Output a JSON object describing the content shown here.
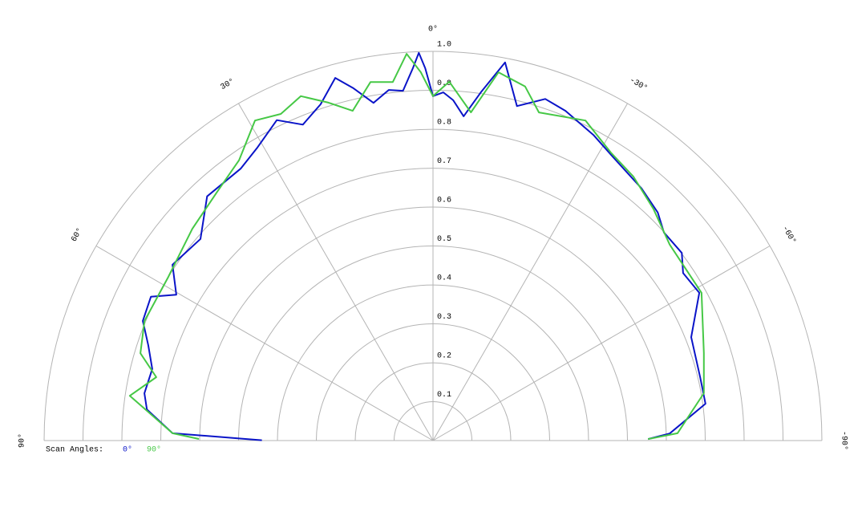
{
  "chart_data": {
    "type": "polar",
    "legend_title": "Scan Angles:",
    "rlim": [
      0,
      1
    ],
    "rticks": [
      0.1,
      0.2,
      0.3,
      0.4,
      0.5,
      0.6,
      0.7,
      0.8,
      0.9,
      {
        "value": 1,
        "label": "1.0"
      }
    ],
    "thetalim": [
      90,
      -90
    ],
    "thetaticks": [
      {
        "value": 90,
        "label": "90°"
      },
      {
        "value": 60,
        "label": "60°"
      },
      {
        "value": 30,
        "label": "30°"
      },
      {
        "value": 0,
        "label": "0°"
      },
      {
        "value": -30,
        "label": "-30°"
      },
      {
        "value": -60,
        "label": "-60°"
      },
      {
        "value": -90,
        "label": "-90°"
      }
    ],
    "grid": true,
    "series": [
      {
        "name": "0°",
        "color": "#0a14c8",
        "theta": [
          89.9,
          88.4,
          83.8,
          80.7,
          75.7,
          71.5,
          67.6,
          63.0,
          60.4,
          56.0,
          49.1,
          42.8,
          35.3,
          31.1,
          26.0,
          22.4,
          18.5,
          15.1,
          12.8,
          10.0,
          7.2,
          4.9,
          3.1,
          2.1,
          1.2,
          0,
          -1.7,
          -3.4,
          -5.4,
          -7.9,
          -10.8,
          -14.1,
          -18.2,
          -21.9,
          -27.7,
          -33.2,
          -39.6,
          -44.6,
          -48.0,
          -53.0,
          -56.2,
          -61.0,
          -68.2,
          -76.7,
          -82.3,
          -88.3,
          -89.6
        ],
        "values": [
          0.44,
          0.67,
          0.74,
          0.752,
          0.745,
          0.772,
          0.807,
          0.814,
          0.759,
          0.808,
          0.791,
          0.855,
          0.856,
          0.877,
          0.916,
          0.878,
          0.911,
          0.965,
          0.929,
          0.881,
          0.908,
          0.902,
          0.958,
          0.997,
          0.957,
          0.885,
          0.895,
          0.876,
          0.837,
          0.905,
          0.989,
          0.886,
          0.924,
          0.913,
          0.887,
          0.86,
          0.841,
          0.823,
          0.799,
          0.801,
          0.774,
          0.783,
          0.715,
          0.706,
          0.707,
          0.609,
          0.553
        ]
      },
      {
        "name": "90°",
        "color": "#46c846",
        "theta": [
          89.6,
          88.4,
          81.6,
          77.1,
          73.4,
          67.5,
          58.3,
          48.7,
          41.1,
          34.7,
          29.1,
          25.0,
          21.0,
          17.2,
          13.7,
          9.9,
          6.4,
          3.9,
          1.9,
          0,
          -2.6,
          -6.6,
          -10.1,
          -14.6,
          -17.9,
          -25.5,
          -31.7,
          -37.2,
          -43.6,
          -50.4,
          -61.2,
          -72.1,
          -80.1,
          -88.3,
          -89.6
        ],
        "values": [
          0.602,
          0.67,
          0.788,
          0.73,
          0.785,
          0.803,
          0.8,
          0.824,
          0.846,
          0.876,
          0.941,
          0.926,
          0.948,
          0.909,
          0.872,
          0.935,
          0.927,
          0.996,
          0.947,
          0.885,
          0.923,
          0.849,
          0.961,
          0.94,
          0.886,
          0.911,
          0.87,
          0.852,
          0.822,
          0.79,
          0.788,
          0.732,
          0.707,
          0.629,
          0.553
        ]
      }
    ]
  }
}
